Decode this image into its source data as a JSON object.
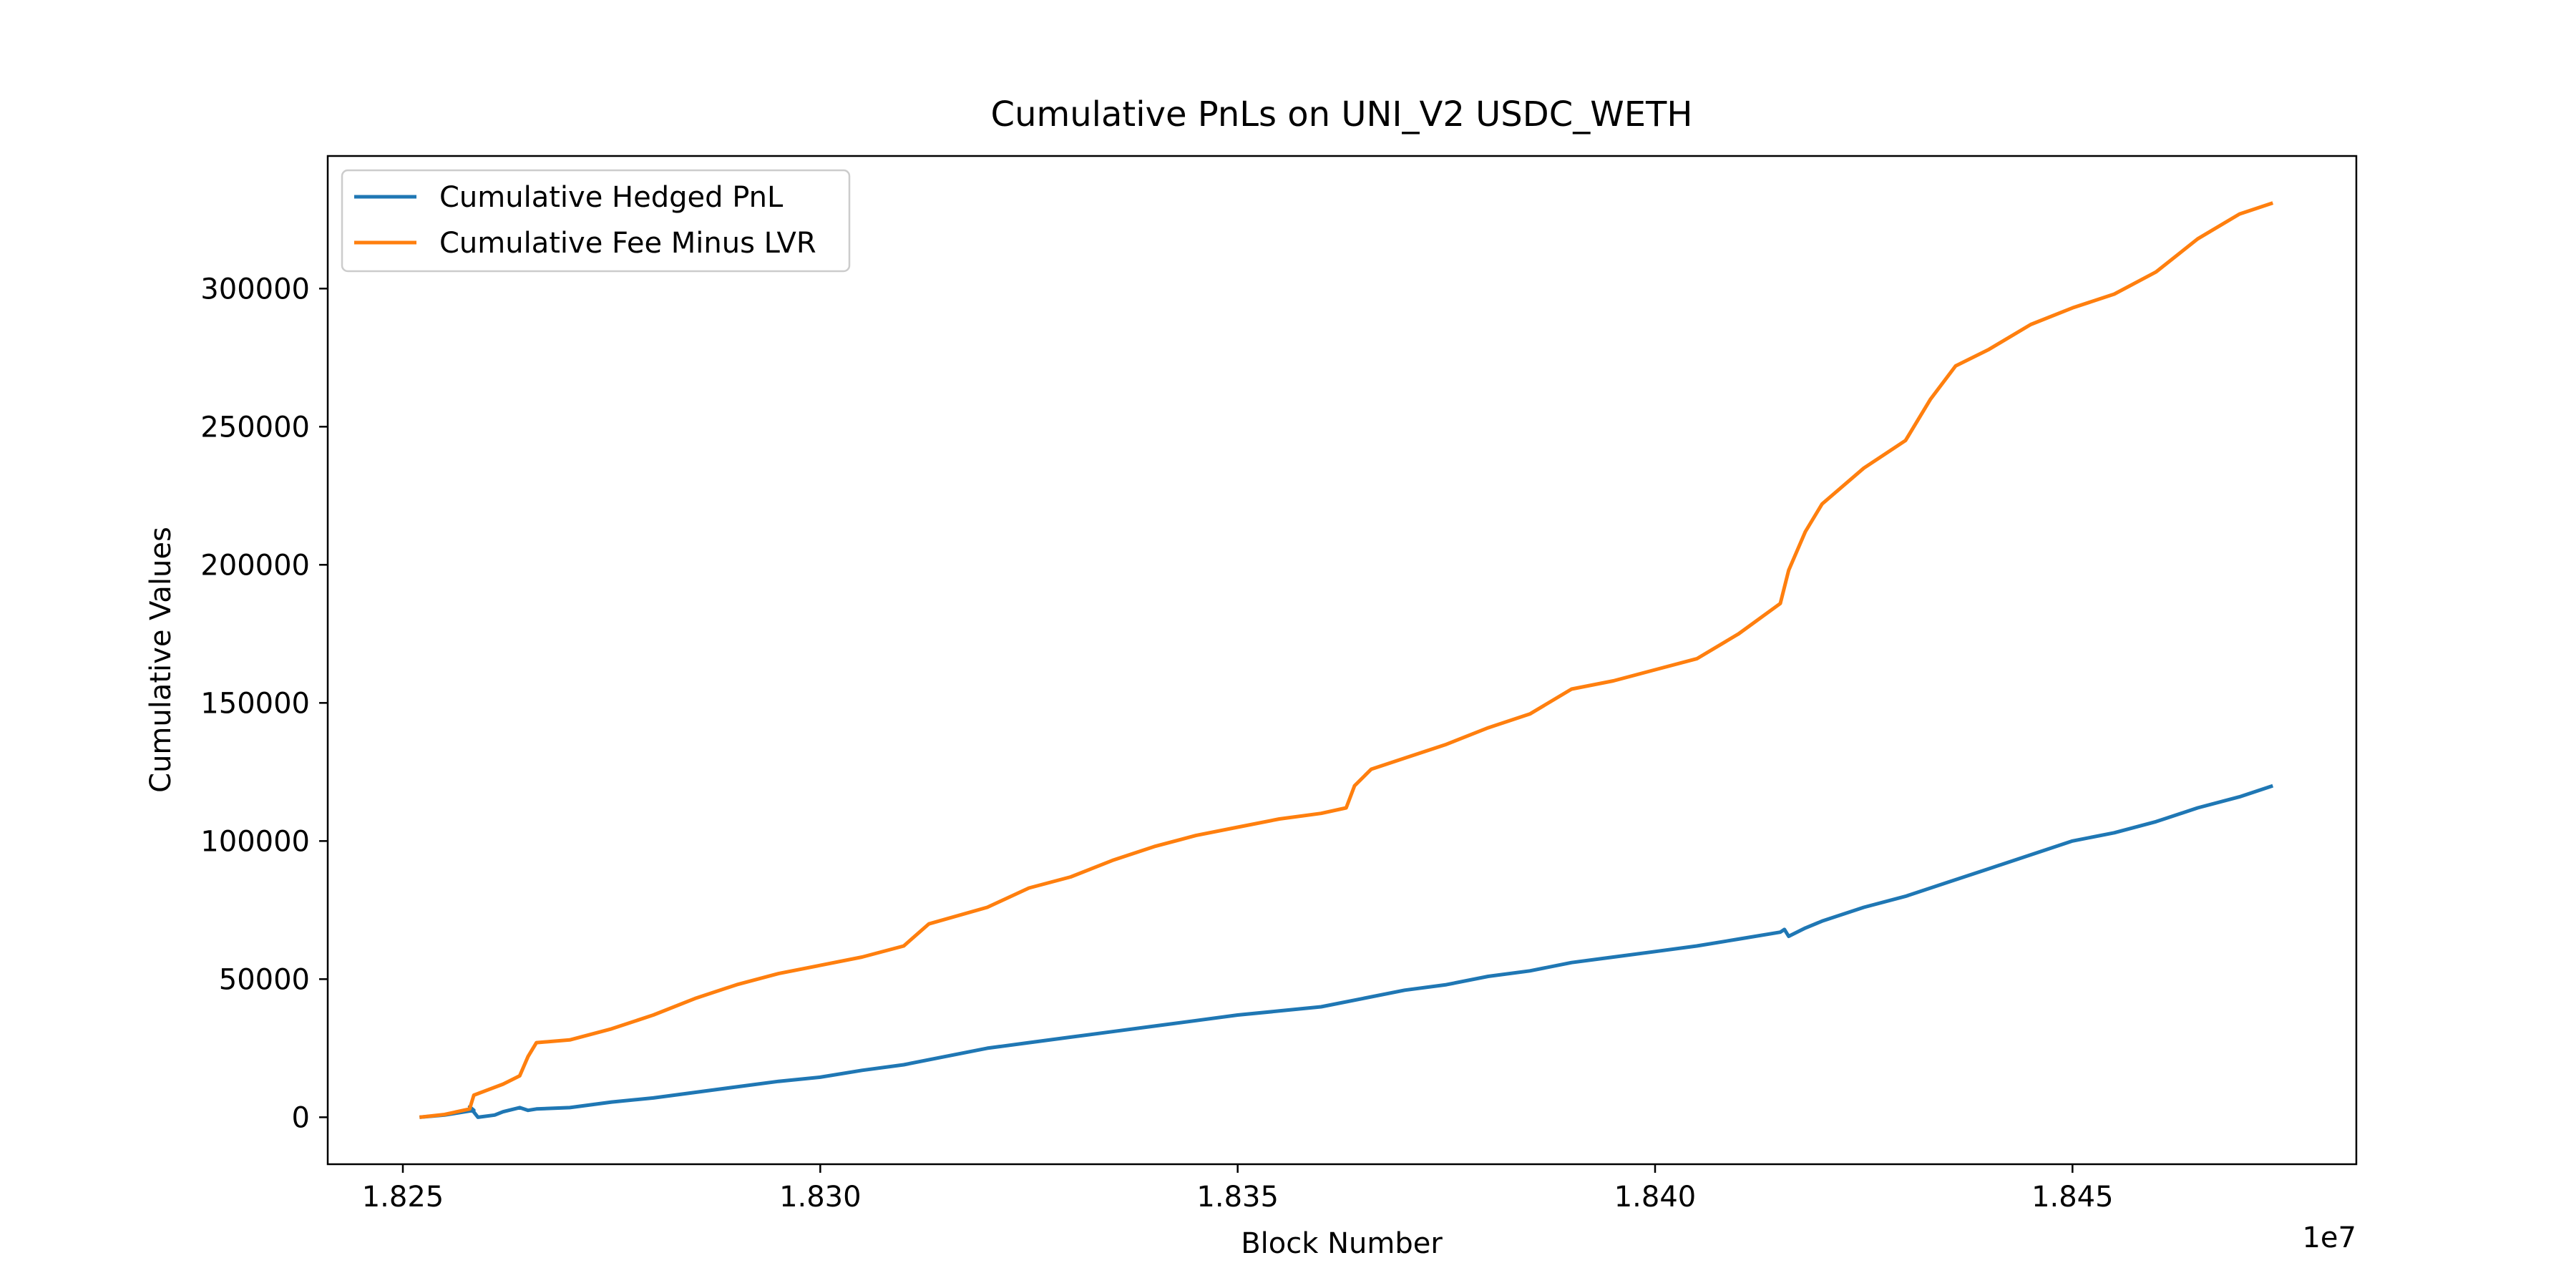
{
  "chart_data": {
    "type": "line",
    "title": "Cumulative PnLs on UNI_V2 USDC_WETH",
    "xlabel": "Block Number",
    "ylabel": "Cumulative Values",
    "x_offset_label": "1e7",
    "x_ticks": [
      "1.825",
      "1.830",
      "1.835",
      "1.840",
      "1.845"
    ],
    "x_tick_values": [
      1.825,
      1.83,
      1.835,
      1.84,
      1.845
    ],
    "y_ticks": [
      "0",
      "50000",
      "100000",
      "150000",
      "200000",
      "250000",
      "300000"
    ],
    "y_tick_values": [
      0,
      50000,
      100000,
      150000,
      200000,
      250000,
      300000
    ],
    "xlim": [
      1.8241,
      1.8484
    ],
    "ylim": [
      -17000,
      348000
    ],
    "grid": false,
    "legend_position": "upper-left",
    "series": [
      {
        "name": "Cumulative Hedged PnL",
        "color": "#1f77b4",
        "points": [
          [
            1.8252,
            0
          ],
          [
            1.8255,
            800
          ],
          [
            1.82585,
            2500
          ],
          [
            1.8258,
            3800
          ],
          [
            1.8259,
            0
          ],
          [
            1.8261,
            800
          ],
          [
            1.8262,
            2000
          ],
          [
            1.8264,
            3500
          ],
          [
            1.8265,
            2500
          ],
          [
            1.8266,
            3000
          ],
          [
            1.827,
            3500
          ],
          [
            1.8275,
            5500
          ],
          [
            1.828,
            7000
          ],
          [
            1.8285,
            9000
          ],
          [
            1.829,
            11000
          ],
          [
            1.8295,
            13000
          ],
          [
            1.83,
            14500
          ],
          [
            1.8305,
            17000
          ],
          [
            1.831,
            19000
          ],
          [
            1.8315,
            22000
          ],
          [
            1.832,
            25000
          ],
          [
            1.8325,
            27000
          ],
          [
            1.833,
            29000
          ],
          [
            1.8335,
            31000
          ],
          [
            1.834,
            33000
          ],
          [
            1.8345,
            35000
          ],
          [
            1.835,
            37000
          ],
          [
            1.8355,
            38500
          ],
          [
            1.836,
            40000
          ],
          [
            1.8365,
            43000
          ],
          [
            1.837,
            46000
          ],
          [
            1.8375,
            48000
          ],
          [
            1.838,
            51000
          ],
          [
            1.8385,
            53000
          ],
          [
            1.839,
            56000
          ],
          [
            1.8395,
            58000
          ],
          [
            1.84,
            60000
          ],
          [
            1.8405,
            62000
          ],
          [
            1.841,
            64500
          ],
          [
            1.8415,
            67000
          ],
          [
            1.84155,
            68000
          ],
          [
            1.8416,
            65500
          ],
          [
            1.8418,
            68500
          ],
          [
            1.842,
            71000
          ],
          [
            1.8425,
            76000
          ],
          [
            1.843,
            80000
          ],
          [
            1.8435,
            85000
          ],
          [
            1.844,
            90000
          ],
          [
            1.8445,
            95000
          ],
          [
            1.845,
            100000
          ],
          [
            1.8455,
            103000
          ],
          [
            1.846,
            107000
          ],
          [
            1.8465,
            112000
          ],
          [
            1.847,
            116000
          ],
          [
            1.8474,
            120000
          ]
        ]
      },
      {
        "name": "Cumulative Fee Minus LVR",
        "color": "#ff7f0e",
        "points": [
          [
            1.8252,
            0
          ],
          [
            1.8255,
            1000
          ],
          [
            1.8258,
            3000
          ],
          [
            1.82585,
            8000
          ],
          [
            1.8262,
            12000
          ],
          [
            1.8264,
            15000
          ],
          [
            1.8265,
            22000
          ],
          [
            1.8266,
            27000
          ],
          [
            1.827,
            28000
          ],
          [
            1.8275,
            32000
          ],
          [
            1.828,
            37000
          ],
          [
            1.8285,
            43000
          ],
          [
            1.829,
            48000
          ],
          [
            1.8295,
            52000
          ],
          [
            1.83,
            55000
          ],
          [
            1.8305,
            58000
          ],
          [
            1.831,
            62000
          ],
          [
            1.8313,
            70000
          ],
          [
            1.832,
            76000
          ],
          [
            1.8325,
            83000
          ],
          [
            1.833,
            87000
          ],
          [
            1.8335,
            93000
          ],
          [
            1.834,
            98000
          ],
          [
            1.8345,
            102000
          ],
          [
            1.835,
            105000
          ],
          [
            1.8355,
            108000
          ],
          [
            1.836,
            110000
          ],
          [
            1.8363,
            112000
          ],
          [
            1.8364,
            120000
          ],
          [
            1.8366,
            126000
          ],
          [
            1.837,
            130000
          ],
          [
            1.8375,
            135000
          ],
          [
            1.838,
            141000
          ],
          [
            1.8385,
            146000
          ],
          [
            1.839,
            155000
          ],
          [
            1.8395,
            158000
          ],
          [
            1.84,
            162000
          ],
          [
            1.8405,
            166000
          ],
          [
            1.841,
            175000
          ],
          [
            1.8415,
            186000
          ],
          [
            1.8416,
            198000
          ],
          [
            1.8418,
            212000
          ],
          [
            1.842,
            222000
          ],
          [
            1.8425,
            235000
          ],
          [
            1.843,
            245000
          ],
          [
            1.8433,
            260000
          ],
          [
            1.8436,
            272000
          ],
          [
            1.844,
            278000
          ],
          [
            1.8445,
            287000
          ],
          [
            1.845,
            293000
          ],
          [
            1.8455,
            298000
          ],
          [
            1.846,
            306000
          ],
          [
            1.8465,
            318000
          ],
          [
            1.847,
            327000
          ],
          [
            1.8474,
            331000
          ]
        ]
      }
    ]
  }
}
